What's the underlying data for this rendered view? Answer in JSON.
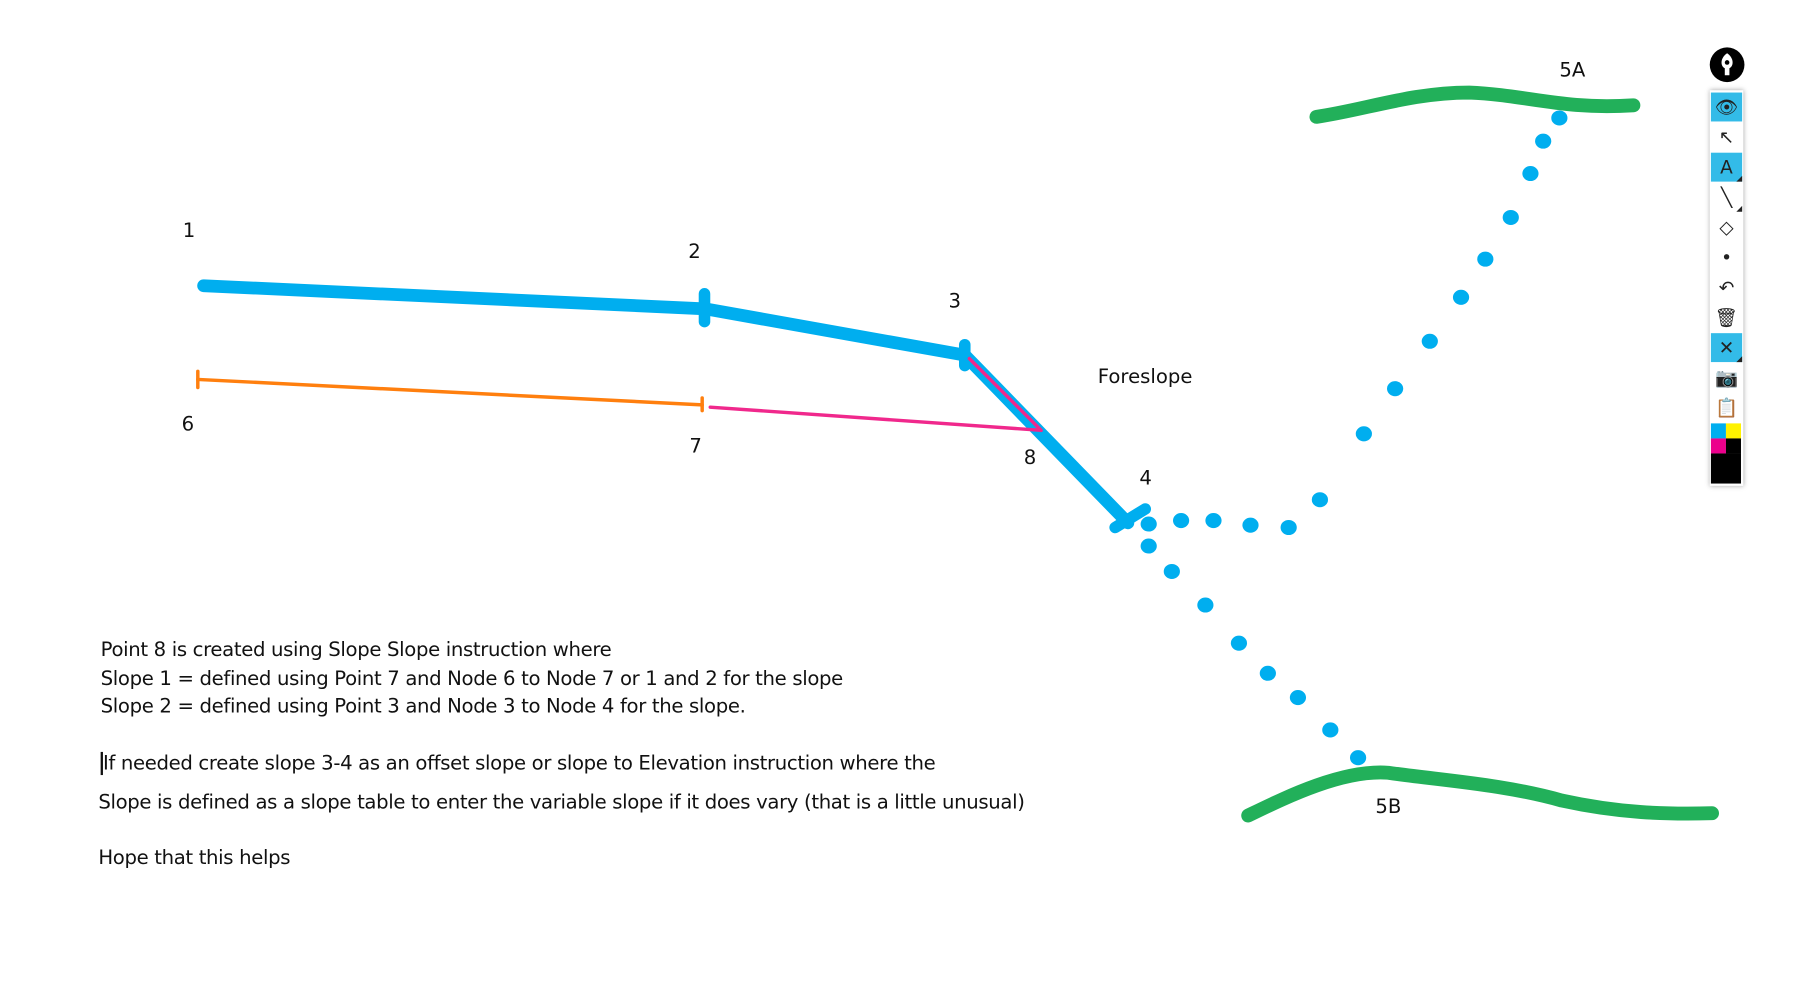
{
  "labels": {
    "p1": "1",
    "p2": "2",
    "p3": "3",
    "p4": "4",
    "p5a": "5A",
    "p5b": "5B",
    "p6": "6",
    "p7": "7",
    "p8": "8",
    "foreslope": "Foreslope"
  },
  "notes": [
    "Point 8 is created using Slope Slope instruction where",
    "Slope 1 = defined using Point 7 and Node 6 to Node 7 or 1 and 2 for the slope",
    "Slope 2 = defined using Point 3 and Node 3 to Node 4 for the slope.",
    "If needed create slope 3-4 as an offset slope or slope to Elevation instruction where the",
    "Slope is defined as a slope table to enter the variable slope if it does vary (that is a little unusual)",
    "Hope that this helps"
  ],
  "toolbar": {
    "tools": [
      {
        "icon": "eye-icon",
        "glyph": "👁",
        "active": true
      },
      {
        "icon": "arrow-pointer-icon",
        "glyph": "↖",
        "active": false
      },
      {
        "icon": "text-icon",
        "glyph": "A",
        "active": true
      },
      {
        "icon": "line-icon",
        "glyph": "╲",
        "active": false
      },
      {
        "icon": "eraser-icon",
        "glyph": "◇",
        "active": false
      },
      {
        "icon": "dot-icon",
        "glyph": "•",
        "active": false
      },
      {
        "icon": "undo-icon",
        "glyph": "↶",
        "active": false
      },
      {
        "icon": "trash-icon",
        "glyph": "🗑",
        "active": false
      },
      {
        "icon": "clear-canvas-icon",
        "glyph": "✕",
        "active": true
      },
      {
        "icon": "camera-icon",
        "glyph": "📷",
        "active": false
      },
      {
        "icon": "clipboard-icon",
        "glyph": "📋",
        "active": false
      }
    ],
    "palette": [
      "#00aeef",
      "#fff200",
      "#ec008c",
      "#000000"
    ]
  },
  "colors": {
    "blue": "#00aeef",
    "orange": "#ff7f0e",
    "magenta": "#f0288c",
    "green": "#22b05a"
  }
}
